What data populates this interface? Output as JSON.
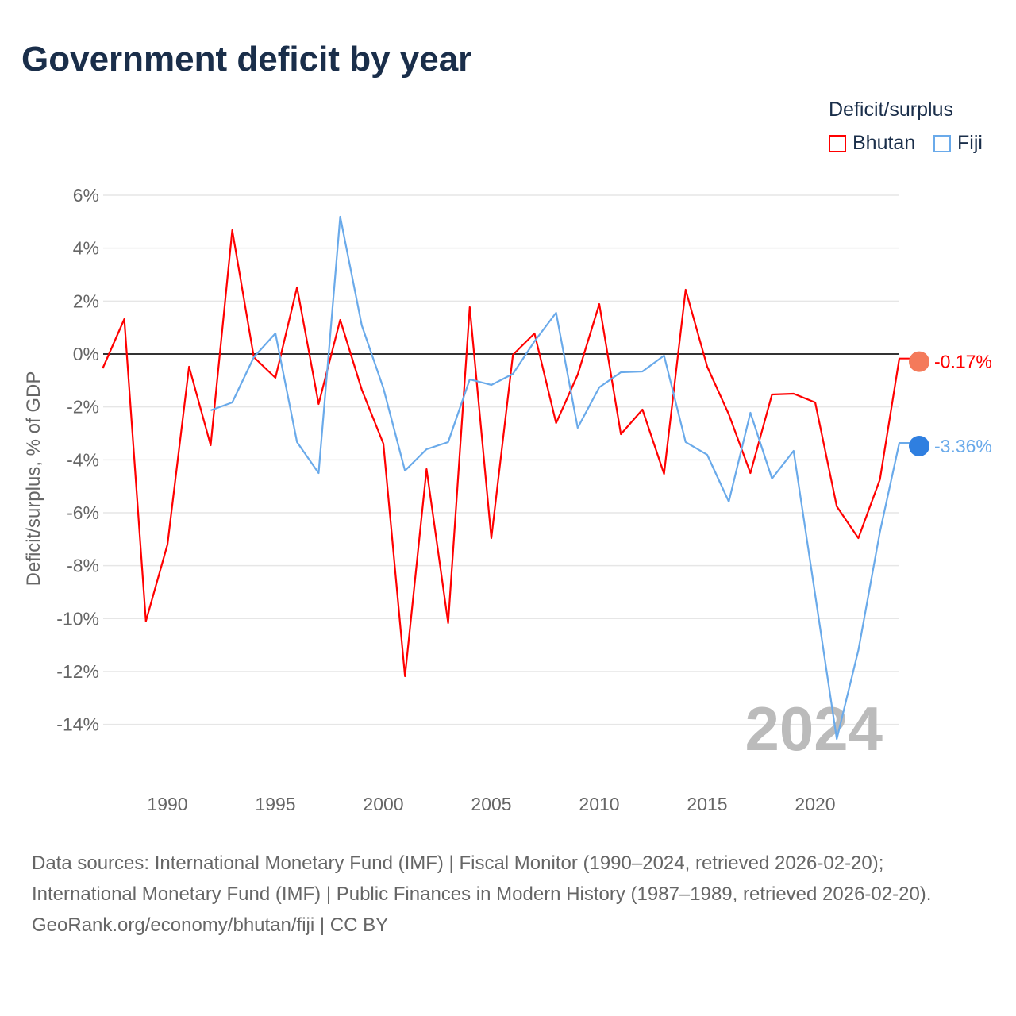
{
  "title": "Government deficit by year",
  "legend": {
    "title": "Deficit/surplus",
    "items": [
      {
        "name": "Bhutan",
        "color": "#ff0000"
      },
      {
        "name": "Fiji",
        "color": "#6aaaea"
      }
    ]
  },
  "year_watermark": "2024",
  "footer": {
    "sources": "Data sources: International Monetary Fund (IMF) | Fiscal Monitor (1990–2024, retrieved 2026-02-20); International Monetary Fund (IMF) | Public Finances in Modern History (1987–1989, retrieved 2026-02-20).",
    "credit": "GeoRank.org/economy/bhutan/fiji | CC BY"
  },
  "chart_data": {
    "type": "line",
    "title": "Government deficit by year",
    "xlabel": "",
    "ylabel": "Deficit/surplus, % of GDP",
    "xlim": [
      1987,
      2024
    ],
    "ylim": [
      -16,
      6
    ],
    "yticks": [
      6,
      4,
      2,
      0,
      -2,
      -4,
      -6,
      -8,
      -10,
      -12,
      -14
    ],
    "ytick_labels": [
      "6%",
      "4%",
      "2%",
      "0%",
      "-2%",
      "-4%",
      "-6%",
      "-8%",
      "-10%",
      "-12%",
      "-14%"
    ],
    "xticks": [
      1990,
      1995,
      2000,
      2005,
      2010,
      2015,
      2020
    ],
    "xtick_labels": [
      "1990",
      "1995",
      "2000",
      "2005",
      "2010",
      "2015",
      "2020"
    ],
    "grid": true,
    "legend_position": "top-right",
    "series": [
      {
        "name": "Bhutan",
        "color": "#ff0000",
        "end_label": "-0.17%",
        "start_year": 1987,
        "values": [
          -0.54,
          1.32,
          -10.1,
          -7.2,
          -0.48,
          -3.45,
          4.68,
          -0.12,
          -0.9,
          2.52,
          -1.89,
          1.29,
          -1.35,
          -3.39,
          -12.18,
          -4.35,
          -10.17,
          1.77,
          -6.96,
          -0.03,
          0.78,
          -2.61,
          -0.78,
          1.89,
          -3.03,
          -2.1,
          -4.53,
          2.43,
          -0.48,
          -2.28,
          -4.5,
          -1.53,
          -1.5,
          -1.83,
          -5.76,
          -6.96,
          -4.74,
          -0.17
        ]
      },
      {
        "name": "Fiji",
        "color": "#6aaaea",
        "end_label": "-3.36%",
        "start_year": 1992,
        "values": [
          -2.13,
          -1.83,
          -0.12,
          0.78,
          -3.33,
          -4.5,
          5.19,
          1.08,
          -1.29,
          -4.41,
          -3.6,
          -3.33,
          -0.96,
          -1.17,
          -0.75,
          0.48,
          1.56,
          -2.79,
          -1.26,
          -0.69,
          -0.66,
          -0.06,
          -3.33,
          -3.81,
          -5.58,
          -2.22,
          -4.71,
          -3.66,
          -9.1,
          -14.55,
          -11.2,
          -6.72,
          -3.36
        ]
      }
    ]
  }
}
